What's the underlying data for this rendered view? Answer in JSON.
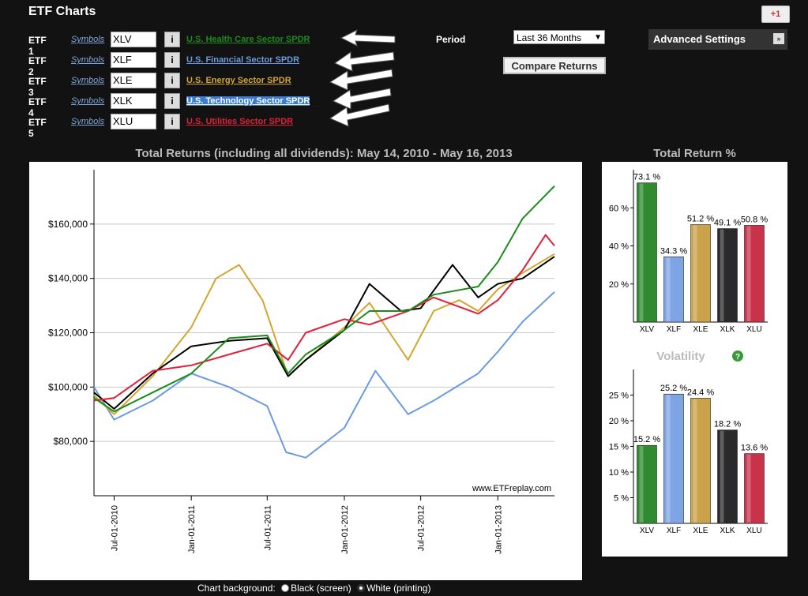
{
  "app": {
    "title": "ETF Charts",
    "gplus": "+1"
  },
  "etfs": [
    {
      "label": "ETF 1",
      "symbols": "Symbols",
      "ticker": "XLV",
      "info": "i",
      "name": "U.S. Health Care Sector SPDR",
      "color": "#1a8c1a"
    },
    {
      "label": "ETF 2",
      "symbols": "Symbols",
      "ticker": "XLF",
      "info": "i",
      "name": "U.S. Financial Sector SPDR",
      "color": "#6a9be0"
    },
    {
      "label": "ETF 3",
      "symbols": "Symbols",
      "ticker": "XLE",
      "info": "i",
      "name": "U.S. Energy Sector SPDR",
      "color": "#d4a52f"
    },
    {
      "label": "ETF 4",
      "symbols": "Symbols",
      "ticker": "XLK",
      "info": "i",
      "name": "U.S. Technology Sector SPDR",
      "color": "#ffffff",
      "highlight": "#3a7bd5"
    },
    {
      "label": "ETF 5",
      "symbols": "Symbols",
      "ticker": "XLU",
      "info": "i",
      "name": "U.S. Utilities Sector SPDR",
      "color": "#e0203a"
    }
  ],
  "period": {
    "label": "Period",
    "selected": "Last 36 Months"
  },
  "compare_label": "Compare Returns",
  "advanced_label": "Advanced Settings",
  "chart_bg": {
    "label": "Chart background:",
    "option_black": "Black (screen)",
    "option_white": "White (printing)",
    "selected": "white"
  },
  "chart_data": [
    {
      "type": "line",
      "title": "Total Returns (including all dividends): May 14, 2010 - May 16, 2013",
      "watermark": "www.ETFreplay.com",
      "y_ticks": [
        {
          "value": 80000,
          "label": "$80,000"
        },
        {
          "value": 100000,
          "label": "$100,000"
        },
        {
          "value": 120000,
          "label": "$120,000"
        },
        {
          "value": 140000,
          "label": "$140,000"
        },
        {
          "value": 160000,
          "label": "$160,000"
        }
      ],
      "ylim": [
        60000,
        180000
      ],
      "xlim": [
        "2010-05-14",
        "2013-05-16"
      ],
      "x_ticks": [
        {
          "date": "2010-07-01",
          "label": "Jul-01-2010"
        },
        {
          "date": "2011-01-01",
          "label": "Jan-01-2011"
        },
        {
          "date": "2011-07-01",
          "label": "Jul-01-2011"
        },
        {
          "date": "2012-01-01",
          "label": "Jan-01-2012"
        },
        {
          "date": "2012-07-01",
          "label": "Jul-01-2012"
        },
        {
          "date": "2013-01-01",
          "label": "Jan-01-2013"
        }
      ],
      "grid": true,
      "series": [
        {
          "name": "XLF",
          "color": "#6a9be0",
          "points": [
            [
              "2010-05-14",
              100000
            ],
            [
              "2010-07-01",
              88000
            ],
            [
              "2010-10-01",
              95000
            ],
            [
              "2011-01-01",
              105000
            ],
            [
              "2011-04-01",
              100000
            ],
            [
              "2011-07-01",
              93000
            ],
            [
              "2011-08-15",
              76000
            ],
            [
              "2011-10-01",
              74000
            ],
            [
              "2012-01-01",
              85000
            ],
            [
              "2012-03-15",
              106000
            ],
            [
              "2012-06-01",
              90000
            ],
            [
              "2012-08-01",
              95000
            ],
            [
              "2012-11-15",
              105000
            ],
            [
              "2013-01-01",
              113000
            ],
            [
              "2013-03-01",
              124000
            ],
            [
              "2013-05-16",
              135000
            ]
          ]
        },
        {
          "name": "XLE",
          "color": "#d4a52f",
          "points": [
            [
              "2010-05-14",
              97000
            ],
            [
              "2010-07-01",
              90000
            ],
            [
              "2010-10-01",
              104000
            ],
            [
              "2011-01-01",
              122000
            ],
            [
              "2011-03-01",
              140000
            ],
            [
              "2011-04-25",
              145000
            ],
            [
              "2011-06-20",
              132000
            ],
            [
              "2011-08-20",
              104000
            ],
            [
              "2011-10-01",
              110000
            ],
            [
              "2012-01-01",
              122000
            ],
            [
              "2012-03-01",
              131000
            ],
            [
              "2012-06-01",
              110000
            ],
            [
              "2012-08-01",
              128000
            ],
            [
              "2012-10-01",
              132000
            ],
            [
              "2012-11-15",
              128000
            ],
            [
              "2013-01-01",
              136000
            ],
            [
              "2013-03-01",
              142000
            ],
            [
              "2013-05-16",
              149000
            ]
          ]
        },
        {
          "name": "XLK",
          "color": "#000000",
          "points": [
            [
              "2010-05-14",
              98000
            ],
            [
              "2010-07-01",
              92000
            ],
            [
              "2010-10-01",
              105000
            ],
            [
              "2011-01-01",
              115000
            ],
            [
              "2011-04-01",
              117000
            ],
            [
              "2011-07-01",
              118000
            ],
            [
              "2011-08-20",
              104000
            ],
            [
              "2011-10-01",
              110000
            ],
            [
              "2012-01-01",
              121000
            ],
            [
              "2012-03-01",
              138000
            ],
            [
              "2012-05-15",
              128000
            ],
            [
              "2012-07-01",
              129000
            ],
            [
              "2012-09-15",
              145000
            ],
            [
              "2012-11-15",
              133000
            ],
            [
              "2013-01-01",
              138000
            ],
            [
              "2013-03-01",
              140000
            ],
            [
              "2013-05-16",
              148000
            ]
          ]
        },
        {
          "name": "XLU",
          "color": "#e0203a",
          "points": [
            [
              "2010-05-14",
              95000
            ],
            [
              "2010-07-01",
              96000
            ],
            [
              "2010-10-01",
              106000
            ],
            [
              "2011-01-01",
              108000
            ],
            [
              "2011-04-01",
              112000
            ],
            [
              "2011-07-01",
              116000
            ],
            [
              "2011-08-20",
              110000
            ],
            [
              "2011-10-01",
              120000
            ],
            [
              "2012-01-01",
              125000
            ],
            [
              "2012-03-01",
              123000
            ],
            [
              "2012-06-01",
              128000
            ],
            [
              "2012-08-01",
              133000
            ],
            [
              "2012-11-15",
              127000
            ],
            [
              "2013-01-01",
              132000
            ],
            [
              "2013-03-01",
              143000
            ],
            [
              "2013-04-25",
              156000
            ],
            [
              "2013-05-16",
              152000
            ]
          ]
        },
        {
          "name": "XLV",
          "color": "#1a8c1a",
          "points": [
            [
              "2010-05-14",
              96000
            ],
            [
              "2010-07-01",
              91000
            ],
            [
              "2010-10-01",
              98000
            ],
            [
              "2011-01-01",
              105000
            ],
            [
              "2011-04-01",
              118000
            ],
            [
              "2011-07-01",
              119000
            ],
            [
              "2011-08-20",
              105000
            ],
            [
              "2011-10-01",
              112000
            ],
            [
              "2012-01-01",
              121000
            ],
            [
              "2012-03-01",
              128000
            ],
            [
              "2012-06-01",
              128000
            ],
            [
              "2012-08-01",
              134000
            ],
            [
              "2012-11-15",
              137000
            ],
            [
              "2013-01-01",
              146000
            ],
            [
              "2013-03-01",
              162000
            ],
            [
              "2013-05-16",
              174000
            ]
          ]
        }
      ]
    },
    {
      "type": "bar",
      "title": "Total Return %",
      "categories": [
        "XLV",
        "XLF",
        "XLE",
        "XLK",
        "XLU"
      ],
      "values": [
        73.1,
        34.3,
        51.2,
        49.1,
        50.8
      ],
      "value_labels": [
        "73.1 %",
        "34.3 %",
        "51.2 %",
        "49.1 %",
        "50.8 %"
      ],
      "colors": [
        "#2e8b2e",
        "#7fa4e4",
        "#c9a24a",
        "#2a2a2a",
        "#c8334a"
      ],
      "y_ticks": [
        20,
        40,
        60
      ],
      "y_tick_labels": [
        "20 %",
        "40 %",
        "60 %"
      ],
      "ylim": [
        0,
        80
      ]
    },
    {
      "type": "bar",
      "title": "Volatility",
      "categories": [
        "XLV",
        "XLF",
        "XLE",
        "XLK",
        "XLU"
      ],
      "values": [
        15.2,
        25.2,
        24.4,
        18.2,
        13.6
      ],
      "value_labels": [
        "15.2 %",
        "25.2 %",
        "24.4 %",
        "18.2 %",
        "13.6 %"
      ],
      "colors": [
        "#2e8b2e",
        "#7fa4e4",
        "#c9a24a",
        "#2a2a2a",
        "#c8334a"
      ],
      "y_ticks": [
        5,
        10,
        15,
        20,
        25
      ],
      "y_tick_labels": [
        "5 %",
        "10 %",
        "15 %",
        "20 %",
        "25 %"
      ],
      "ylim": [
        0,
        30
      ],
      "help_icon": "?"
    }
  ]
}
